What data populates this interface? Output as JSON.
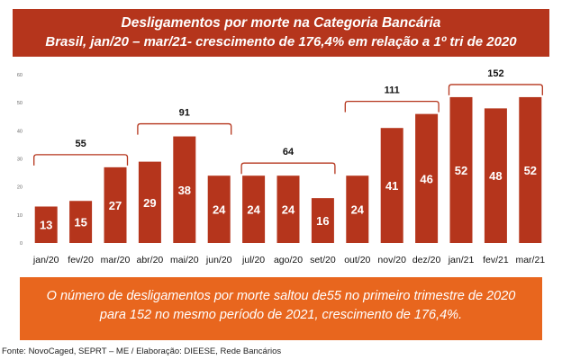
{
  "header": {
    "title_line1": "Desligamentos por morte na Categoria Bancária",
    "title_line2": "Brasil, jan/20 – mar/21- crescimento de 176,4% em relação a 1º tri de 2020"
  },
  "chart_data": {
    "type": "bar",
    "categories": [
      "jan/20",
      "fev/20",
      "mar/20",
      "abr/20",
      "mai/20",
      "jun/20",
      "jul/20",
      "ago/20",
      "set/20",
      "out/20",
      "nov/20",
      "dez/20",
      "jan/21",
      "fev/21",
      "mar/21"
    ],
    "values": [
      13,
      15,
      27,
      29,
      38,
      24,
      24,
      24,
      16,
      24,
      41,
      46,
      52,
      48,
      52
    ],
    "ylim": [
      0,
      60
    ],
    "yticks": [
      0,
      10,
      20,
      30,
      40,
      50,
      60
    ],
    "bar_color": "#b5351c",
    "bracket_color": "#b5351c",
    "quarter_totals": [
      {
        "label": "55",
        "start": 0,
        "end": 2
      },
      {
        "label": "91",
        "start": 3,
        "end": 5
      },
      {
        "label": "64",
        "start": 6,
        "end": 8
      },
      {
        "label": "111",
        "start": 9,
        "end": 11
      },
      {
        "label": "152",
        "start": 12,
        "end": 14
      }
    ]
  },
  "note": {
    "line1": "O número de desligamentos por morte saltou de55 no primeiro trimestre de 2020",
    "line2": "para 152 no mesmo período de 2021, crescimento de 176,4%."
  },
  "source": "Fonte: NovoCaged, SEPRT – ME / Elaboração: DIEESE, Rede Bancários"
}
